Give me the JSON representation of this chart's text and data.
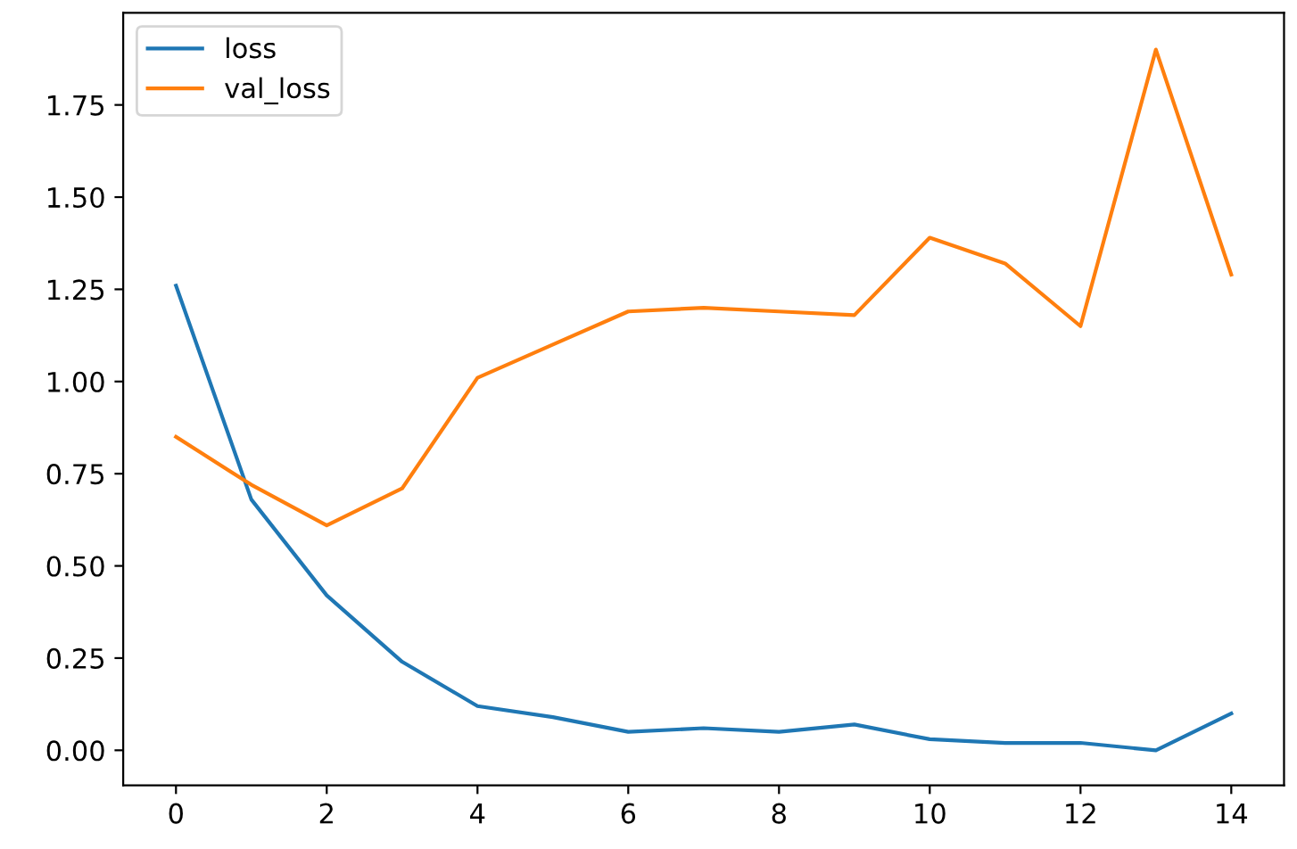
{
  "chart_data": {
    "type": "line",
    "x": [
      0,
      1,
      2,
      3,
      4,
      5,
      6,
      7,
      8,
      9,
      10,
      11,
      12,
      13,
      14
    ],
    "series": [
      {
        "name": "loss",
        "color": "#1f77b4",
        "values": [
          1.26,
          0.68,
          0.42,
          0.24,
          0.12,
          0.09,
          0.05,
          0.06,
          0.05,
          0.07,
          0.03,
          0.02,
          0.02,
          0.0,
          0.1
        ]
      },
      {
        "name": "val_loss",
        "color": "#ff7f0e",
        "values": [
          0.85,
          0.72,
          0.61,
          0.71,
          1.01,
          1.1,
          1.19,
          1.2,
          1.19,
          1.18,
          1.39,
          1.32,
          1.15,
          1.9,
          1.29
        ]
      }
    ],
    "xlim": [
      -0.7,
      14.7
    ],
    "ylim": [
      -0.095,
      2.0
    ],
    "xticks": [
      0,
      2,
      4,
      6,
      8,
      10,
      12,
      14
    ],
    "yticks": [
      {
        "value": 0,
        "label": "0.00"
      },
      {
        "value": 0.25,
        "label": "0.25"
      },
      {
        "value": 0.5,
        "label": "0.50"
      },
      {
        "value": 0.75,
        "label": "0.75"
      },
      {
        "value": 1,
        "label": "1.00"
      },
      {
        "value": 1.25,
        "label": "1.25"
      },
      {
        "value": 1.5,
        "label": "1.50"
      },
      {
        "value": 1.75,
        "label": "1.75"
      }
    ],
    "grid": false,
    "legend": "top left",
    "marker": "none",
    "line_style": "solid"
  }
}
